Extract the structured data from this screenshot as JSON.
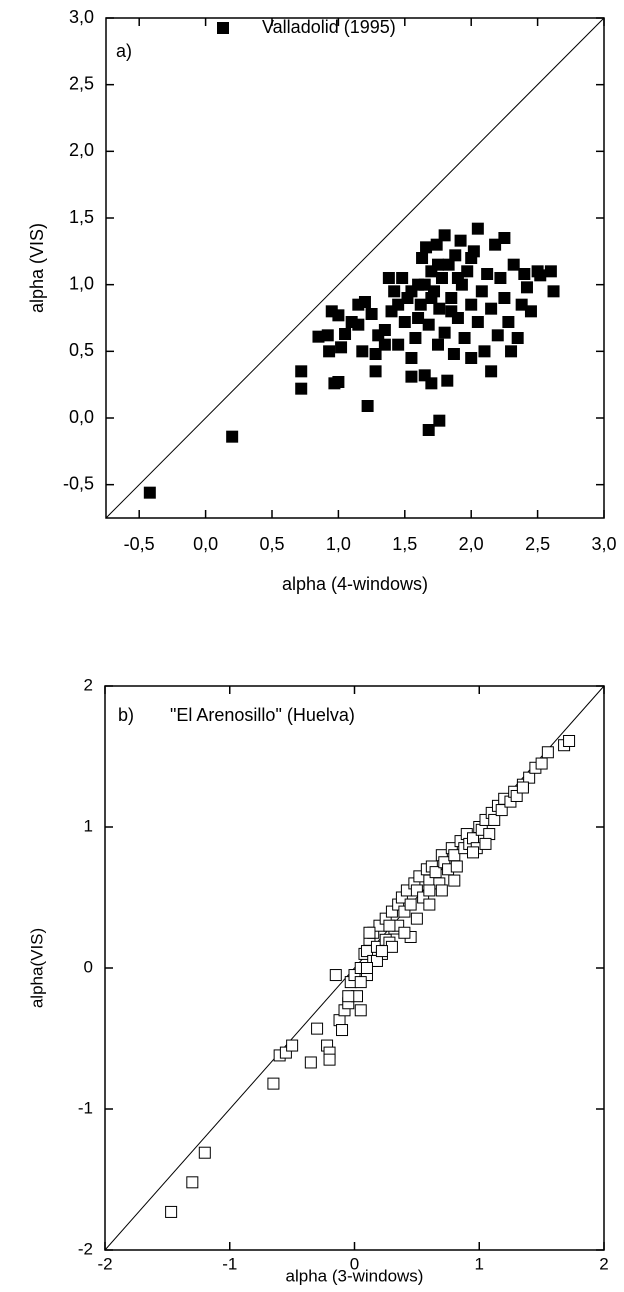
{
  "chart_data": [
    {
      "type": "scatter",
      "annotations": [
        "a)"
      ],
      "xlabel": "alpha (4-windows)",
      "ylabel": "alpha (VIS)",
      "xlim": [
        -0.75,
        3
      ],
      "ylim": [
        -0.75,
        3
      ],
      "xticks": [
        {
          "value": -0.5,
          "label": "-0,5"
        },
        {
          "value": 0,
          "label": "0,0"
        },
        {
          "value": 0.5,
          "label": "0,5"
        },
        {
          "value": 1,
          "label": "1,0"
        },
        {
          "value": 1.5,
          "label": "1,5"
        },
        {
          "value": 2,
          "label": "2,0"
        },
        {
          "value": 2.5,
          "label": "2,5"
        },
        {
          "value": 3,
          "label": "3,0"
        }
      ],
      "yticks": [
        {
          "value": -0.5,
          "label": "-0,5"
        },
        {
          "value": 0,
          "label": "0,0"
        },
        {
          "value": 0.5,
          "label": "0,5"
        },
        {
          "value": 1,
          "label": "1,0"
        },
        {
          "value": 1.5,
          "label": "1,5"
        },
        {
          "value": 2,
          "label": "2,0"
        },
        {
          "value": 2.5,
          "label": "2,5"
        },
        {
          "value": 3,
          "label": "3,0"
        }
      ],
      "reference_line": "y=x",
      "series": [
        {
          "name": "Valladolid (1995)",
          "color": "#000000",
          "marker": "filled-square",
          "x": [
            -0.42,
            0.2,
            0.72,
            0.72,
            0.97,
            1.0,
            1.22,
            1.68,
            1.76,
            0.85,
            0.92,
            0.95,
            0.93,
            1.0,
            1.02,
            1.05,
            1.1,
            1.15,
            1.2,
            1.18,
            1.25,
            1.28,
            1.3,
            1.35,
            1.38,
            1.4,
            1.42,
            1.45,
            1.48,
            1.5,
            1.52,
            1.55,
            1.55,
            1.58,
            1.6,
            1.62,
            1.63,
            1.65,
            1.66,
            1.68,
            1.7,
            1.7,
            1.72,
            1.74,
            1.75,
            1.76,
            1.78,
            1.8,
            1.8,
            1.82,
            1.83,
            1.85,
            1.87,
            1.88,
            1.9,
            1.92,
            1.93,
            1.95,
            1.97,
            2.0,
            2.0,
            2.02,
            2.05,
            2.05,
            2.08,
            2.1,
            2.12,
            2.15,
            2.15,
            2.18,
            2.2,
            2.22,
            2.25,
            2.25,
            2.28,
            2.3,
            2.32,
            2.35,
            2.38,
            2.4,
            2.42,
            2.45,
            2.5,
            2.52,
            2.6,
            2.62,
            1.45,
            1.6,
            1.7,
            1.9,
            1.65,
            1.75,
            1.55,
            1.85,
            2.0,
            1.35,
            1.28,
            1.15
          ],
          "y": [
            -0.56,
            -0.14,
            0.35,
            0.22,
            0.26,
            0.27,
            0.09,
            -0.09,
            -0.02,
            0.61,
            0.62,
            0.8,
            0.5,
            0.77,
            0.53,
            0.63,
            0.72,
            0.7,
            0.87,
            0.5,
            0.78,
            0.35,
            0.62,
            0.66,
            1.05,
            0.8,
            0.95,
            0.55,
            1.05,
            0.72,
            0.9,
            0.45,
            0.31,
            0.6,
            1.0,
            0.85,
            1.2,
            0.32,
            1.28,
            0.7,
            0.26,
            1.1,
            0.95,
            1.3,
            0.55,
            0.82,
            1.05,
            1.37,
            0.64,
            0.28,
            1.15,
            0.9,
            0.48,
            1.22,
            0.75,
            1.33,
            1.0,
            0.6,
            1.1,
            0.45,
            0.85,
            1.25,
            0.72,
            1.42,
            0.95,
            0.5,
            1.08,
            0.35,
            0.82,
            1.3,
            0.62,
            1.05,
            0.9,
            1.35,
            0.72,
            0.5,
            1.15,
            0.6,
            0.85,
            1.08,
            0.98,
            0.8,
            1.1,
            1.07,
            1.1,
            0.95,
            0.85,
            0.75,
            0.9,
            1.05,
            1.0,
            1.15,
            0.95,
            0.8,
            1.2,
            0.55,
            0.48,
            0.85
          ]
        }
      ]
    },
    {
      "type": "scatter",
      "annotations": [
        "b)",
        "\"El Arenosillo\" (Huelva)"
      ],
      "xlabel": "alpha (3-windows)",
      "ylabel": "alpha(VIS)",
      "xlim": [
        -2,
        2
      ],
      "ylim": [
        -2,
        2
      ],
      "xticks": [
        -2,
        -1,
        0,
        1,
        2
      ],
      "yticks": [
        -2,
        -1,
        0,
        1,
        2
      ],
      "reference_line": "y=x",
      "series": [
        {
          "color": "#000000",
          "marker": "open-square",
          "x": [
            -1.47,
            -1.3,
            -1.2,
            -0.65,
            -0.6,
            -0.55,
            -0.5,
            -0.35,
            -0.3,
            -0.22,
            -0.2,
            -0.2,
            -0.12,
            -0.1,
            -0.08,
            -0.05,
            -0.03,
            0.0,
            0.02,
            0.05,
            0.05,
            0.08,
            0.1,
            0.1,
            0.12,
            0.15,
            0.15,
            0.18,
            0.2,
            0.22,
            0.25,
            0.25,
            0.28,
            0.3,
            0.32,
            0.35,
            0.35,
            0.38,
            0.4,
            0.42,
            0.45,
            0.48,
            0.5,
            0.5,
            0.52,
            0.55,
            0.58,
            0.6,
            0.6,
            0.62,
            0.65,
            0.68,
            0.7,
            0.72,
            0.75,
            0.78,
            0.8,
            0.82,
            0.85,
            0.88,
            0.9,
            0.92,
            0.95,
            0.98,
            1.0,
            1.02,
            1.05,
            1.08,
            1.1,
            1.12,
            1.15,
            1.18,
            1.2,
            1.25,
            1.28,
            1.3,
            1.35,
            1.4,
            1.45,
            1.5,
            1.55,
            1.68,
            1.72,
            0.05,
            0.18,
            0.3,
            0.45,
            0.6,
            0.8,
            0.95,
            -0.05,
            0.12,
            0.22,
            0.4,
            0.7,
            1.05,
            1.35,
            0.1,
            -0.15,
            0.28
          ],
          "y": [
            -1.73,
            -1.52,
            -1.31,
            -0.82,
            -0.62,
            -0.6,
            -0.55,
            -0.67,
            -0.43,
            -0.55,
            -0.6,
            -0.65,
            -0.37,
            -0.44,
            -0.3,
            -0.25,
            -0.1,
            -0.05,
            -0.2,
            0.0,
            -0.3,
            0.1,
            0.12,
            -0.05,
            0.2,
            0.25,
            0.05,
            0.15,
            0.3,
            0.1,
            0.35,
            0.2,
            0.18,
            0.4,
            0.28,
            0.45,
            0.3,
            0.5,
            0.4,
            0.55,
            0.45,
            0.6,
            0.55,
            0.35,
            0.65,
            0.5,
            0.7,
            0.62,
            0.45,
            0.72,
            0.68,
            0.6,
            0.8,
            0.75,
            0.7,
            0.85,
            0.8,
            0.72,
            0.9,
            0.85,
            0.95,
            0.88,
            0.92,
            0.85,
            1.0,
            0.98,
            1.05,
            0.95,
            1.1,
            1.05,
            1.15,
            1.12,
            1.2,
            1.18,
            1.25,
            1.22,
            1.3,
            1.35,
            1.42,
            1.45,
            1.53,
            1.58,
            1.61,
            -0.1,
            0.05,
            0.15,
            0.22,
            0.55,
            0.62,
            0.82,
            -0.2,
            0.25,
            0.12,
            0.25,
            0.55,
            0.88,
            1.28,
            0.0,
            -0.05,
            0.3
          ]
        }
      ]
    }
  ]
}
